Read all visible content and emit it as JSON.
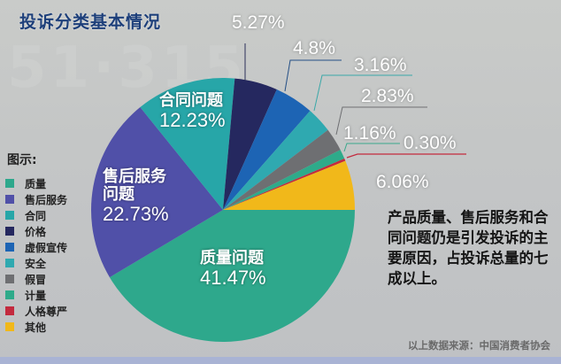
{
  "header": {
    "title": "投诉分类基本情况"
  },
  "legend": {
    "title": "图示:",
    "items": [
      {
        "label": "质量",
        "color": "#2ea88c"
      },
      {
        "label": "售后服务",
        "color": "#5050a8"
      },
      {
        "label": "合同",
        "color": "#27a6a8"
      },
      {
        "label": "价格",
        "color": "#25285f"
      },
      {
        "label": "虚假宣传",
        "color": "#1d64b4"
      },
      {
        "label": "安全",
        "color": "#2fa9b0"
      },
      {
        "label": "假冒",
        "color": "#6e6f72"
      },
      {
        "label": "计量",
        "color": "#2eaa8a"
      },
      {
        "label": "人格尊严",
        "color": "#c32a3e"
      },
      {
        "label": "其他",
        "color": "#f1b81a"
      }
    ]
  },
  "inside_labels": {
    "quality": {
      "name": "质量问题",
      "pct": "41.47%"
    },
    "after_sales": {
      "name1": "售后服务",
      "name2": "问题",
      "pct": "22.73%"
    },
    "contract": {
      "name": "合同问题",
      "pct": "12.23%"
    }
  },
  "outside_labels": {
    "price": "5.27%",
    "false_advertising": "4.8%",
    "safety": "3.16%",
    "counterfeit": "2.83%",
    "measurement": "1.16%",
    "dignity": "0.30%",
    "other": "6.06%"
  },
  "note": "产品质量、售后服务和合同问题仍是引发投诉的主要原因，占投诉总量的七成以上。",
  "source": "以上数据来源：中国消费者协会",
  "chart_data": {
    "type": "pie",
    "title": "投诉分类基本情况",
    "categories": [
      "质量",
      "售后服务",
      "合同",
      "价格",
      "虚假宣传",
      "安全",
      "假冒",
      "计量",
      "人格尊严",
      "其他"
    ],
    "values": [
      41.47,
      22.73,
      12.23,
      5.27,
      4.8,
      3.16,
      2.83,
      1.16,
      0.3,
      6.06
    ],
    "colors": [
      "#2ea88c",
      "#5050a8",
      "#27a6a8",
      "#25285f",
      "#1d64b4",
      "#2fa9b0",
      "#6e6f72",
      "#2eaa8a",
      "#c32a3e",
      "#f1b81a"
    ],
    "start_angle_deg": 0,
    "direction": "clockwise",
    "legend_position": "left",
    "annotation": "产品质量、售后服务和合同问题仍是引发投诉的主要原因，占投诉总量的七成以上。",
    "source": "以上数据来源：中国消费者协会"
  }
}
